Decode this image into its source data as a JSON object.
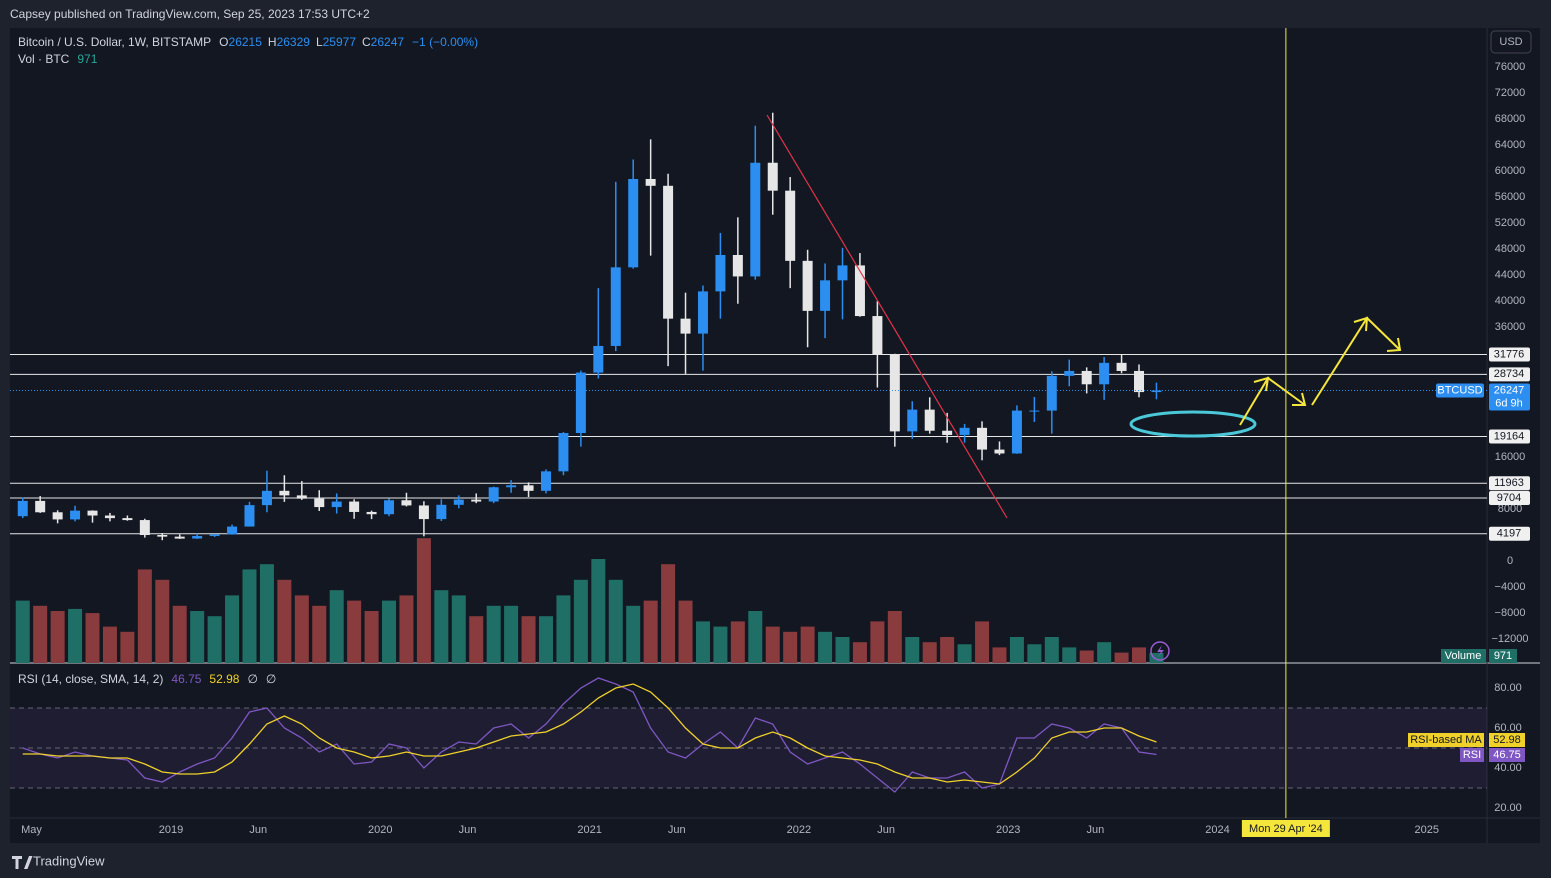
{
  "header": {
    "published": "Capsey published on TradingView.com, Sep 25, 2023 17:53 UTC+2"
  },
  "chart_data": {
    "type": "candlestick",
    "title": "Bitcoin / U.S. Dollar, 1W, BITSTAMP",
    "ohlc_legend": [
      {
        "label": "O",
        "value": 26215
      },
      {
        "label": "H",
        "value": 26329
      },
      {
        "label": "L",
        "value": 25977
      },
      {
        "label": "C",
        "value": 26247
      }
    ],
    "change": "−1 (−0.00%)",
    "currency": "USD",
    "x": [
      "2018-04",
      "2018-05",
      "2018-06",
      "2018-07",
      "2018-08",
      "2018-09",
      "2018-10",
      "2018-11",
      "2018-12",
      "2019-01",
      "2019-02",
      "2019-03",
      "2019-04",
      "2019-05",
      "2019-06",
      "2019-07",
      "2019-08",
      "2019-09",
      "2019-10",
      "2019-11",
      "2019-12",
      "2020-01",
      "2020-02",
      "2020-03",
      "2020-04",
      "2020-05",
      "2020-06",
      "2020-07",
      "2020-08",
      "2020-09",
      "2020-10",
      "2020-11",
      "2020-12",
      "2021-01",
      "2021-02",
      "2021-03",
      "2021-04",
      "2021-05",
      "2021-06",
      "2021-07",
      "2021-08",
      "2021-09",
      "2021-10",
      "2021-11",
      "2021-12",
      "2022-01",
      "2022-02",
      "2022-03",
      "2022-04",
      "2022-05",
      "2022-06",
      "2022-07",
      "2022-08",
      "2022-09",
      "2022-10",
      "2022-11",
      "2022-12",
      "2023-01",
      "2023-02",
      "2023-03",
      "2023-04",
      "2023-05",
      "2023-06",
      "2023-07",
      "2023-08",
      "2023-09"
    ],
    "open": [
      6900,
      9250,
      7500,
      6400,
      7750,
      7000,
      6600,
      6300,
      4000,
      3750,
      3450,
      3850,
      4100,
      5300,
      8600,
      10800,
      10100,
      9600,
      8300,
      9150,
      7550,
      7200,
      9350,
      8550,
      6450,
      8650,
      9450,
      9150,
      11350,
      11650,
      10800,
      13800,
      19700,
      29000,
      33100,
      45200,
      58800,
      57750,
      37300,
      35000,
      41500,
      47100,
      43800,
      61300,
      57000,
      46200,
      38500,
      43200,
      45500,
      37700,
      31800,
      19950,
      23300,
      20050,
      19400,
      20500,
      17150,
      16550,
      23150,
      23150,
      28500,
      29250,
      27200,
      30500,
      29250,
      26000
    ],
    "high": [
      9800,
      10000,
      7800,
      8500,
      7800,
      7400,
      7000,
      6500,
      4300,
      4100,
      4200,
      4100,
      5600,
      9100,
      13900,
      13200,
      12300,
      10900,
      10400,
      9500,
      7750,
      9600,
      10500,
      9200,
      9500,
      10100,
      10400,
      11450,
      12450,
      12100,
      14100,
      19850,
      29300,
      42000,
      58350,
      61800,
      64900,
      59600,
      41300,
      42400,
      50500,
      52900,
      67000,
      69000,
      59100,
      47900,
      45800,
      48200,
      47400,
      40000,
      31900,
      24600,
      25200,
      22800,
      21100,
      21500,
      18400,
      23950,
      25250,
      29200,
      31000,
      29800,
      31400,
      31800,
      30250,
      27450
    ],
    "low": [
      6600,
      7400,
      5800,
      6100,
      5900,
      6100,
      6200,
      3600,
      3200,
      3400,
      3400,
      3700,
      4050,
      5300,
      7500,
      9100,
      9400,
      7700,
      7300,
      6500,
      6450,
      6900,
      8400,
      3800,
      6150,
      8100,
      8900,
      8900,
      10500,
      9850,
      10400,
      13200,
      17600,
      28100,
      32300,
      45000,
      47000,
      30000,
      28800,
      29300,
      37300,
      39600,
      43300,
      53300,
      42000,
      32900,
      34300,
      37200,
      37600,
      26700,
      17600,
      18800,
      19600,
      18200,
      18200,
      15500,
      16300,
      16500,
      21400,
      19600,
      26900,
      25800,
      24800,
      28900,
      25200,
      24900
    ],
    "close": [
      9250,
      7500,
      6400,
      7750,
      7000,
      6600,
      6300,
      4000,
      3750,
      3450,
      3850,
      4100,
      5300,
      8600,
      10800,
      10100,
      9600,
      8300,
      9150,
      7550,
      7200,
      9350,
      8550,
      6450,
      8650,
      9450,
      9150,
      11350,
      11650,
      10800,
      13800,
      19700,
      29000,
      33100,
      45200,
      58800,
      57750,
      37300,
      35000,
      41500,
      47100,
      43800,
      61300,
      57000,
      46200,
      38500,
      43200,
      45500,
      37700,
      31800,
      19950,
      23300,
      20050,
      19400,
      20500,
      17150,
      16550,
      23150,
      23150,
      28500,
      29250,
      27200,
      30500,
      29250,
      26000,
      26247
    ],
    "up_color": "#2b8ef0",
    "down_color": "#e6e6e6",
    "ylim": [
      -15700,
      80500
    ],
    "yticks": [
      76000,
      72000,
      68000,
      64000,
      60000,
      56000,
      52000,
      48000,
      44000,
      40000,
      36000,
      16000,
      8000,
      0,
      {
        "value": -4000,
        "label": "−4000"
      },
      {
        "value": -8000,
        "label": "−8000"
      },
      {
        "value": -12000,
        "label": "−12000"
      }
    ],
    "levels": [
      31776,
      28734,
      19164,
      11963,
      9704,
      4197
    ],
    "last_price": {
      "name": "BTCUSD",
      "countdown": "6d 9h",
      "color": "#2b8ef0"
    },
    "xticks": [
      {
        "value": "2018-05",
        "label": "May"
      },
      {
        "value": "2019-01",
        "label": "2019"
      },
      {
        "value": "2019-06",
        "label": "Jun"
      },
      {
        "value": "2020-01",
        "label": "2020"
      },
      {
        "value": "2020-06",
        "label": "Jun"
      },
      {
        "value": "2021-01",
        "label": "2021"
      },
      {
        "value": "2021-06",
        "label": "Jun"
      },
      {
        "value": "2022-01",
        "label": "2022"
      },
      {
        "value": "2022-06",
        "label": "Jun"
      },
      {
        "value": "2023-01",
        "label": "2023"
      },
      {
        "value": "2023-06",
        "label": "Jun"
      },
      {
        "value": "2024-01",
        "label": "2024"
      },
      {
        "value": "2025-01",
        "label": "2025"
      }
    ],
    "marker": {
      "x": "2024-04-29",
      "label": "Mon 29 Apr '24",
      "color": "#f5e63b"
    },
    "volume": {
      "title": "Vol · BTC",
      "name": "Volume",
      "ylim": [
        0,
        12500
      ],
      "up_color": "#1f6f66",
      "down_color": "#8a3b3d",
      "values": [
        6000,
        5500,
        5000,
        5200,
        4800,
        3500,
        3000,
        9000,
        8000,
        5500,
        5000,
        4500,
        6500,
        9000,
        9500,
        8000,
        6500,
        5500,
        7000,
        6000,
        5000,
        6000,
        6500,
        12000,
        7000,
        6500,
        4500,
        5500,
        5500,
        4500,
        4500,
        6500,
        8000,
        10000,
        8000,
        5500,
        6000,
        9500,
        6000,
        4000,
        3500,
        4000,
        5000,
        3500,
        3000,
        3500,
        3000,
        2500,
        2000,
        4000,
        5000,
        2500,
        2000,
        2500,
        1800,
        4000,
        1500,
        2500,
        1800,
        2500,
        1500,
        1200,
        2000,
        1000,
        1500,
        971
      ]
    },
    "rsi": {
      "title": "RSI (14, close, SMA, 14, 2)",
      "flags": [
        "∅",
        "∅"
      ],
      "ylim": [
        15,
        92.5
      ],
      "yticks": [
        {
          "value": 80,
          "label": "80.00"
        },
        {
          "value": 60,
          "label": "60.00"
        },
        {
          "value": 40,
          "label": "40.00"
        },
        {
          "value": 20,
          "label": "20.00"
        }
      ],
      "bands": [
        70,
        50,
        30
      ],
      "series": [
        {
          "name": "RSI",
          "color": "#7e57c2",
          "values": [
            50,
            47,
            45,
            48,
            46,
            45,
            44,
            35,
            33,
            38,
            42,
            45,
            55,
            68,
            70,
            60,
            55,
            48,
            52,
            42,
            43,
            52,
            50,
            40,
            48,
            53,
            52,
            60,
            62,
            55,
            62,
            72,
            80,
            85,
            82,
            78,
            60,
            48,
            45,
            52,
            58,
            50,
            65,
            62,
            48,
            42,
            45,
            48,
            42,
            35,
            28,
            38,
            35,
            35,
            38,
            30,
            32,
            55,
            55,
            62,
            60,
            55,
            62,
            60,
            48,
            46.75
          ]
        },
        {
          "name": "RSI-based MA",
          "color": "#f0d12a",
          "values": [
            47,
            47,
            46,
            46,
            46,
            45,
            45,
            42,
            38,
            37,
            37,
            38,
            43,
            52,
            62,
            66,
            62,
            55,
            50,
            48,
            45,
            46,
            48,
            46,
            46,
            48,
            50,
            53,
            56,
            57,
            58,
            62,
            68,
            75,
            80,
            82,
            78,
            70,
            60,
            52,
            50,
            50,
            55,
            58,
            55,
            50,
            46,
            45,
            44,
            42,
            38,
            35,
            35,
            33,
            34,
            33,
            32,
            38,
            45,
            55,
            58,
            58,
            60,
            60,
            56,
            52.98
          ]
        }
      ]
    }
  },
  "footer": {
    "brand": "TradingView"
  }
}
